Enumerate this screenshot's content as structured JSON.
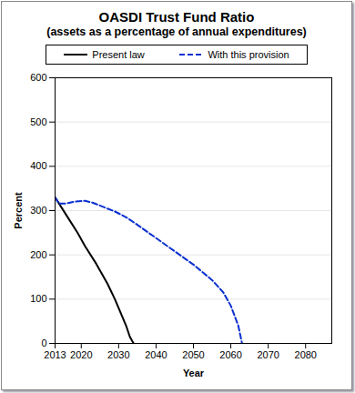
{
  "chart_data": {
    "type": "line",
    "title": "OASDI Trust Fund Ratio",
    "subtitle": "(assets as a percentage of annual expenditures)",
    "x_label": "Year",
    "y_label": "Percent",
    "xlim": [
      2013,
      2087
    ],
    "xticks": [
      2013,
      2020,
      2030,
      2040,
      2050,
      2060,
      2070,
      2080
    ],
    "ylim": [
      0,
      600
    ],
    "yticks": [
      0,
      100,
      200,
      300,
      400,
      500,
      600
    ],
    "grid": true,
    "legend": "top",
    "series": [
      {
        "name": "Present law",
        "color": "#000000",
        "line_style": "solid",
        "x": [
          2013,
          2016,
          2019,
          2021,
          2024,
          2027,
          2029,
          2031,
          2032,
          2033,
          2034
        ],
        "values": [
          330,
          290,
          250,
          220,
          180,
          135,
          100,
          60,
          40,
          15,
          0
        ]
      },
      {
        "name": "With this provision",
        "color": "#0a2fd0",
        "line_style": "dashed",
        "x": [
          2013,
          2014,
          2016,
          2018,
          2021,
          2023,
          2026,
          2029,
          2032,
          2035,
          2040,
          2045,
          2050,
          2055,
          2058,
          2060,
          2062,
          2063
        ],
        "values": [
          330,
          316,
          316,
          320,
          322,
          318,
          308,
          298,
          285,
          268,
          238,
          208,
          178,
          143,
          115,
          85,
          40,
          0
        ]
      }
    ]
  }
}
